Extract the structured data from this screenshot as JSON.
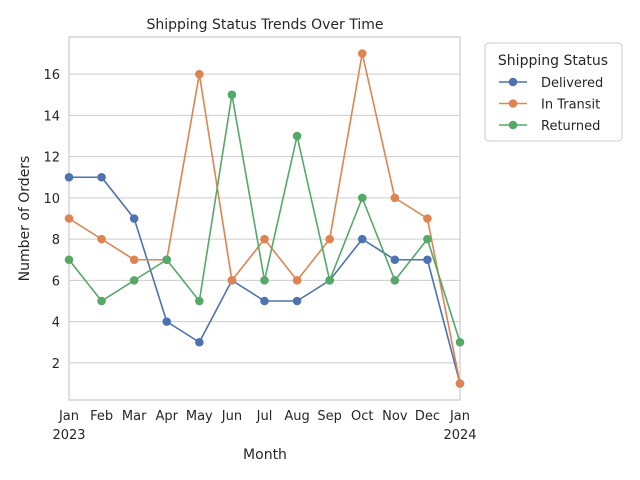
{
  "chart_data": {
    "type": "line",
    "title": "Shipping Status Trends Over Time",
    "xlabel": "Month",
    "ylabel": "Number of Orders",
    "x": [
      "2023-01",
      "2023-02",
      "2023-03",
      "2023-04",
      "2023-05",
      "2023-06",
      "2023-07",
      "2023-08",
      "2023-09",
      "2023-10",
      "2023-11",
      "2023-12",
      "2024-01"
    ],
    "x_tick_labels": [
      {
        "month": "Jan",
        "year": "2023"
      },
      {
        "month": "Feb",
        "year": ""
      },
      {
        "month": "Mar",
        "year": ""
      },
      {
        "month": "Apr",
        "year": ""
      },
      {
        "month": "May",
        "year": ""
      },
      {
        "month": "Jun",
        "year": ""
      },
      {
        "month": "Jul",
        "year": ""
      },
      {
        "month": "Aug",
        "year": ""
      },
      {
        "month": "Sep",
        "year": ""
      },
      {
        "month": "Oct",
        "year": ""
      },
      {
        "month": "Nov",
        "year": ""
      },
      {
        "month": "Dec",
        "year": ""
      },
      {
        "month": "Jan",
        "year": "2024"
      }
    ],
    "y_ticks": [
      2,
      4,
      6,
      8,
      10,
      12,
      14,
      16
    ],
    "ylim": [
      0.2,
      17.8
    ],
    "grid": true,
    "legend": {
      "title": "Shipping Status",
      "placement": "outside-right"
    },
    "series": [
      {
        "name": "Delivered",
        "color": "#4c72b0",
        "values": [
          11,
          11,
          9,
          4,
          3,
          6,
          5,
          5,
          6,
          8,
          7,
          7,
          1
        ]
      },
      {
        "name": "In Transit",
        "color": "#dd8452",
        "values": [
          9,
          8,
          7,
          7,
          16,
          6,
          8,
          6,
          8,
          17,
          10,
          9,
          1
        ]
      },
      {
        "name": "Returned",
        "color": "#55a868",
        "values": [
          7,
          5,
          6,
          7,
          5,
          15,
          6,
          13,
          6,
          10,
          6,
          8,
          3
        ]
      }
    ]
  }
}
